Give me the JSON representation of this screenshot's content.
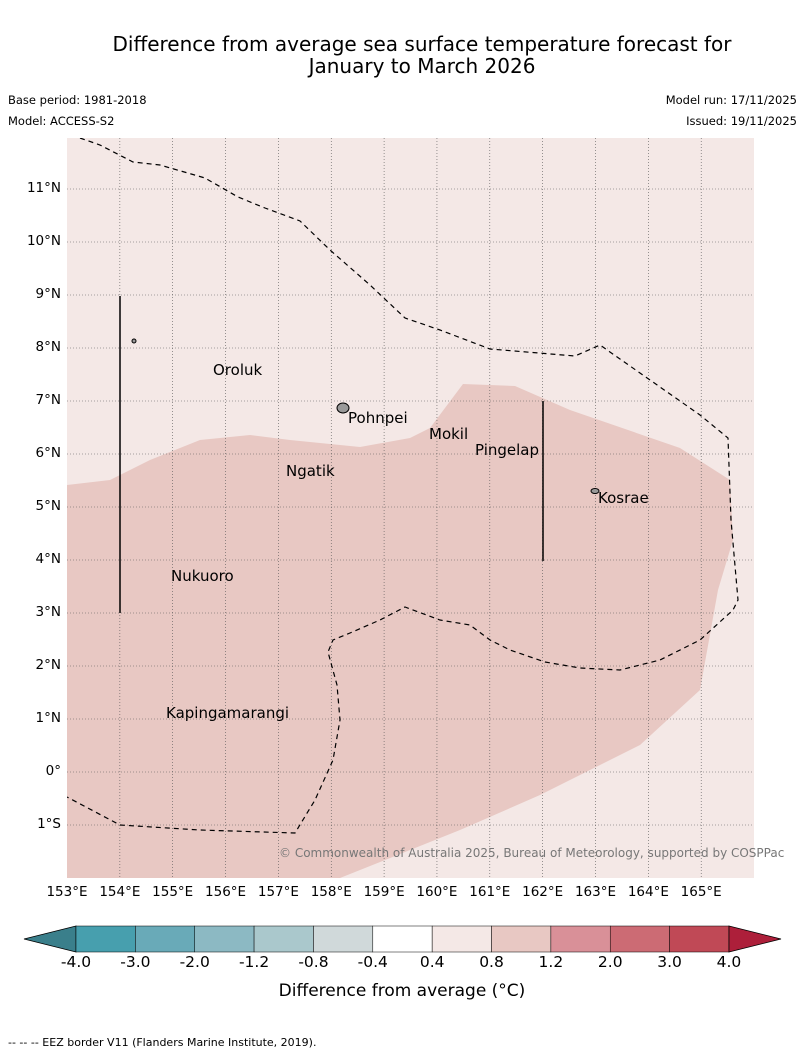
{
  "title_line1": "Difference from average sea surface temperature forecast for",
  "title_line2": "January to March 2026",
  "base_period": "Base period: 1981-2018",
  "model": "Model: ACCESS-S2",
  "model_run": "Model run: 17/11/2025",
  "issued": "Issued: 19/11/2025",
  "copyright": "© Commonwealth of Australia 2025, Bureau of Meteorology, supported by COSPPac",
  "lon_labels": [
    "153°E",
    "154°E",
    "155°E",
    "156°E",
    "157°E",
    "158°E",
    "159°E",
    "160°E",
    "161°E",
    "162°E",
    "163°E",
    "164°E",
    "165°E"
  ],
  "lat_labels": [
    "11°N",
    "10°N",
    "9°N",
    "8°N",
    "7°N",
    "6°N",
    "5°N",
    "4°N",
    "3°N",
    "2°N",
    "1°N",
    "0°",
    "1°S"
  ],
  "places": [
    "Oroluk",
    "Pohnpei",
    "Mokil",
    "Pingelap",
    "Ngatik",
    "Kosrae",
    "Nukuoro",
    "Kapingamarangi"
  ],
  "colorbar": {
    "labels": [
      "-4.0",
      "-3.0",
      "-2.0",
      "-1.2",
      "-0.8",
      "-0.4",
      "0.4",
      "0.8",
      "1.2",
      "2.0",
      "3.0",
      "4.0"
    ],
    "colors": [
      "#479fae",
      "#69aab8",
      "#8cb9c3",
      "#aac8cc",
      "#d0d9da",
      "#ffffff",
      "#f4e8e6",
      "#e8c8c3",
      "#d99098",
      "#cc6b74",
      "#c04956"
    ],
    "under_color": "#3a7f8b",
    "over_color": "#ad1f3a",
    "label": "Difference from average (°C)"
  },
  "legend_note": "--  --  -- EEZ border V11 (Flanders Marine Institute, 2019)."
}
